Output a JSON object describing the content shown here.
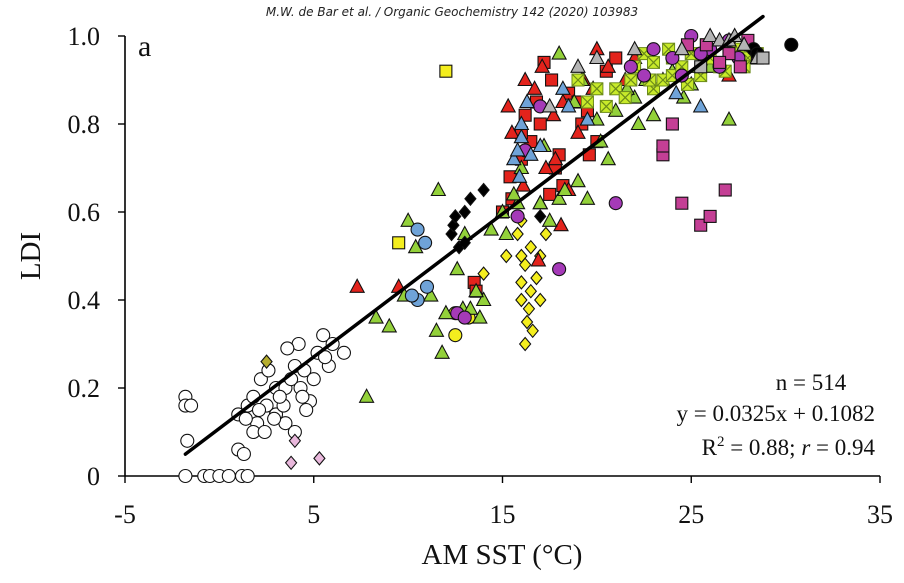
{
  "header": {
    "citation": "M.W. de Bar et al. / Organic Geochemistry 142 (2020) 103983"
  },
  "chart_data": {
    "type": "scatter",
    "panel_label": "a",
    "xlabel": "AM SST (°C)",
    "ylabel": "LDI",
    "xlim": [
      -5,
      35
    ],
    "ylim": [
      0,
      1.0
    ],
    "xticks": [
      "-5",
      "5",
      "15",
      "25",
      "35"
    ],
    "yticks": [
      "0",
      "0.2",
      "0.4",
      "0.6",
      "0.8",
      "1.0"
    ],
    "grid": false,
    "stats": {
      "n": "n = 514",
      "equation": "y = 0.0325x + 0.1082",
      "r2_prefix": "R",
      "r2_sup": "2",
      "r2_mid": " = 0.88; ",
      "r_symbol": "r",
      "r_value": " = 0.94"
    },
    "regression": {
      "slope": 0.0325,
      "intercept": 0.1082,
      "x_range": [
        -1.8,
        28.8
      ]
    },
    "colors": {
      "white": "#ffffff",
      "yellow": "#f4ee1e",
      "red": "#e3231c",
      "green": "#93d13a",
      "lime": "#c8ea2a",
      "purple": "#a53ab8",
      "magenta": "#c43f95",
      "blue": "#6fa3d8",
      "black": "#000000",
      "pink": "#e9b8dc",
      "olive": "#b5ad2e",
      "gray": "#b4b4b4"
    },
    "series": [
      {
        "marker": "circle",
        "color": "white",
        "points": [
          [
            -1.8,
            0.18
          ],
          [
            -1.8,
            0.16
          ],
          [
            -1.7,
            0.08
          ],
          [
            -1.5,
            0.16
          ],
          [
            -1.8,
            0.0
          ],
          [
            -0.8,
            0.0
          ],
          [
            -0.5,
            0.0
          ],
          [
            0.0,
            0.0
          ],
          [
            0.5,
            0.0
          ],
          [
            1.2,
            0.0
          ],
          [
            1.5,
            0.0
          ],
          [
            1.0,
            0.06
          ],
          [
            1.3,
            0.05
          ],
          [
            1.0,
            0.14
          ],
          [
            1.5,
            0.16
          ],
          [
            1.8,
            0.18
          ],
          [
            2.0,
            0.12
          ],
          [
            2.5,
            0.16
          ],
          [
            3.0,
            0.14
          ],
          [
            3.5,
            0.12
          ],
          [
            4.0,
            0.1
          ],
          [
            3.0,
            0.2
          ],
          [
            3.5,
            0.2
          ],
          [
            4.0,
            0.25
          ],
          [
            4.5,
            0.24
          ],
          [
            5.0,
            0.22
          ],
          [
            5.2,
            0.28
          ],
          [
            5.5,
            0.32
          ],
          [
            6.0,
            0.3
          ],
          [
            4.2,
            0.3
          ],
          [
            3.6,
            0.29
          ],
          [
            2.2,
            0.22
          ],
          [
            2.6,
            0.24
          ],
          [
            1.8,
            0.1
          ],
          [
            2.4,
            0.1
          ],
          [
            4.8,
            0.17
          ],
          [
            4.6,
            0.15
          ],
          [
            5.8,
            0.25
          ],
          [
            3.8,
            0.22
          ],
          [
            3.4,
            0.16
          ],
          [
            2.9,
            0.13
          ],
          [
            1.4,
            0.13
          ],
          [
            4.3,
            0.2
          ],
          [
            5.6,
            0.27
          ],
          [
            6.6,
            0.28
          ],
          [
            3.2,
            0.18
          ],
          [
            2.1,
            0.15
          ],
          [
            4.4,
            0.18
          ]
        ]
      },
      {
        "marker": "square",
        "color": "yellow",
        "points": [
          [
            9.5,
            0.53
          ],
          [
            12.0,
            0.92
          ]
        ]
      },
      {
        "marker": "circle",
        "color": "yellow",
        "points": [
          [
            12.5,
            0.37
          ],
          [
            12.5,
            0.32
          ],
          [
            13.2,
            0.36
          ]
        ]
      },
      {
        "marker": "diamond",
        "color": "yellow",
        "points": [
          [
            15.8,
            0.55
          ],
          [
            16.0,
            0.5
          ],
          [
            16.0,
            0.44
          ],
          [
            16.2,
            0.48
          ],
          [
            16.0,
            0.4
          ],
          [
            16.4,
            0.38
          ],
          [
            16.3,
            0.35
          ],
          [
            16.5,
            0.42
          ],
          [
            16.8,
            0.45
          ],
          [
            17.0,
            0.4
          ],
          [
            16.5,
            0.52
          ],
          [
            17.3,
            0.55
          ],
          [
            16.2,
            0.3
          ],
          [
            16.6,
            0.33
          ],
          [
            17.0,
            0.5
          ],
          [
            14.0,
            0.46
          ],
          [
            15.2,
            0.5
          ],
          [
            16.0,
            0.58
          ]
        ]
      },
      {
        "marker": "square",
        "color": "red",
        "points": [
          [
            13.5,
            0.44
          ],
          [
            13.6,
            0.42
          ],
          [
            15.0,
            0.6
          ],
          [
            15.5,
            0.63
          ],
          [
            16.0,
            0.72
          ],
          [
            16.5,
            0.76
          ],
          [
            16.8,
            0.85
          ],
          [
            17.0,
            0.8
          ],
          [
            17.2,
            0.94
          ],
          [
            17.5,
            0.64
          ],
          [
            18.0,
            0.73
          ],
          [
            18.5,
            0.87
          ],
          [
            19.0,
            0.85
          ],
          [
            19.5,
            0.83
          ],
          [
            19.6,
            0.73
          ],
          [
            20.0,
            0.76
          ],
          [
            21.0,
            0.95
          ],
          [
            18.2,
            0.66
          ],
          [
            16.2,
            0.82
          ],
          [
            17.6,
            0.9
          ],
          [
            15.4,
            0.68
          ],
          [
            16.0,
            0.78
          ],
          [
            20.5,
            0.92
          ],
          [
            19.2,
            0.8
          ],
          [
            17.8,
            0.7
          ]
        ]
      },
      {
        "marker": "triangle",
        "color": "red",
        "points": [
          [
            7.3,
            0.43
          ],
          [
            9.5,
            0.43
          ],
          [
            15.5,
            0.78
          ],
          [
            16.2,
            0.9
          ],
          [
            16.7,
            0.88
          ],
          [
            17.0,
            0.62
          ],
          [
            17.3,
            0.7
          ],
          [
            17.8,
            0.72
          ],
          [
            18.2,
            0.85
          ],
          [
            18.5,
            0.65
          ],
          [
            19.0,
            0.78
          ],
          [
            19.3,
            0.9
          ],
          [
            18.1,
            0.57
          ],
          [
            20.0,
            0.97
          ],
          [
            21.5,
            0.9
          ],
          [
            22.0,
            0.95
          ],
          [
            27.0,
            0.91
          ],
          [
            16.9,
            0.49
          ],
          [
            17.1,
            0.93
          ],
          [
            19.8,
            0.88
          ],
          [
            15.3,
            0.84
          ],
          [
            16.1,
            0.66
          ],
          [
            17.7,
            0.82
          ],
          [
            20.6,
            0.93
          ]
        ]
      },
      {
        "marker": "triangle",
        "color": "green",
        "points": [
          [
            7.8,
            0.18
          ],
          [
            8.3,
            0.36
          ],
          [
            9.0,
            0.34
          ],
          [
            9.8,
            0.41
          ],
          [
            10.0,
            0.58
          ],
          [
            10.4,
            0.52
          ],
          [
            11.2,
            0.41
          ],
          [
            11.5,
            0.33
          ],
          [
            11.8,
            0.28
          ],
          [
            12.0,
            0.37
          ],
          [
            12.6,
            0.47
          ],
          [
            12.9,
            0.38
          ],
          [
            13.3,
            0.38
          ],
          [
            13.8,
            0.36
          ],
          [
            13.0,
            0.55
          ],
          [
            11.6,
            0.65
          ],
          [
            14.0,
            0.4
          ],
          [
            15.0,
            0.6
          ],
          [
            15.2,
            0.55
          ],
          [
            15.8,
            0.62
          ],
          [
            16.0,
            0.7
          ],
          [
            17.0,
            0.62
          ],
          [
            17.5,
            0.58
          ],
          [
            18.0,
            0.63
          ],
          [
            18.3,
            0.65
          ],
          [
            19.0,
            0.67
          ],
          [
            19.5,
            0.63
          ],
          [
            20.0,
            0.81
          ],
          [
            21.0,
            0.83
          ],
          [
            22.0,
            0.86
          ],
          [
            23.0,
            0.82
          ],
          [
            23.5,
            0.9
          ],
          [
            24.0,
            0.92
          ],
          [
            25.0,
            0.89
          ],
          [
            26.0,
            0.93
          ],
          [
            27.0,
            0.81
          ],
          [
            18.0,
            0.96
          ],
          [
            19.2,
            0.9
          ],
          [
            20.2,
            0.76
          ],
          [
            21.6,
            0.88
          ],
          [
            22.6,
            0.9
          ],
          [
            24.6,
            0.86
          ],
          [
            25.4,
            0.93
          ],
          [
            17.2,
            0.75
          ],
          [
            18.8,
            0.85
          ],
          [
            13.6,
            0.42
          ],
          [
            14.4,
            0.56
          ],
          [
            15.6,
            0.64
          ],
          [
            20.6,
            0.72
          ],
          [
            22.2,
            0.8
          ]
        ]
      },
      {
        "marker": "x-square",
        "color": "lime",
        "points": [
          [
            19.0,
            0.9
          ],
          [
            19.5,
            0.85
          ],
          [
            20.0,
            0.88
          ],
          [
            20.5,
            0.84
          ],
          [
            21.0,
            0.88
          ],
          [
            21.5,
            0.86
          ],
          [
            22.0,
            0.93
          ],
          [
            22.5,
            0.96
          ],
          [
            23.0,
            0.88
          ],
          [
            23.0,
            0.94
          ],
          [
            23.5,
            0.9
          ],
          [
            24.0,
            0.95
          ],
          [
            24.0,
            0.91
          ],
          [
            24.5,
            0.93
          ],
          [
            25.0,
            0.96
          ],
          [
            25.5,
            0.91
          ],
          [
            26.0,
            0.95
          ],
          [
            26.5,
            0.93
          ],
          [
            27.0,
            0.96
          ],
          [
            27.5,
            0.97
          ],
          [
            28.0,
            0.95
          ],
          [
            28.5,
            0.96
          ],
          [
            22.8,
            0.9
          ],
          [
            24.8,
            0.89
          ],
          [
            26.8,
            0.92
          ],
          [
            21.8,
            0.9
          ],
          [
            23.8,
            0.97
          ],
          [
            25.8,
            0.98
          ],
          [
            27.8,
            0.93
          ]
        ]
      },
      {
        "marker": "circle",
        "color": "purple",
        "points": [
          [
            12.6,
            0.37
          ],
          [
            13.0,
            0.36
          ],
          [
            15.8,
            0.59
          ],
          [
            16.2,
            0.74
          ],
          [
            17.0,
            0.84
          ],
          [
            18.0,
            0.47
          ],
          [
            21.0,
            0.62
          ],
          [
            21.8,
            0.93
          ],
          [
            22.5,
            0.91
          ],
          [
            23.0,
            0.97
          ],
          [
            24.0,
            0.95
          ],
          [
            25.0,
            1.0
          ],
          [
            26.0,
            0.97
          ],
          [
            27.0,
            0.99
          ],
          [
            27.5,
            0.95
          ],
          [
            28.0,
            0.98
          ],
          [
            28.5,
            0.96
          ],
          [
            24.5,
            0.91
          ],
          [
            26.5,
            0.93
          ],
          [
            25.5,
            0.96
          ]
        ]
      },
      {
        "marker": "square",
        "color": "magenta",
        "points": [
          [
            23.5,
            0.73
          ],
          [
            23.5,
            0.75
          ],
          [
            24.0,
            0.8
          ],
          [
            24.5,
            0.62
          ],
          [
            25.5,
            0.57
          ],
          [
            26.0,
            0.59
          ],
          [
            26.8,
            0.65
          ],
          [
            25.8,
            0.98
          ],
          [
            27.0,
            0.96
          ],
          [
            28.0,
            0.99
          ],
          [
            26.5,
            0.94
          ],
          [
            28.5,
            0.95
          ],
          [
            24.8,
            0.98
          ],
          [
            27.6,
            0.93
          ]
        ]
      },
      {
        "marker": "circle",
        "color": "blue",
        "points": [
          [
            10.5,
            0.56
          ],
          [
            10.9,
            0.53
          ],
          [
            10.5,
            0.4
          ],
          [
            10.2,
            0.41
          ],
          [
            11.0,
            0.43
          ]
        ]
      },
      {
        "marker": "triangle",
        "color": "blue",
        "points": [
          [
            15.6,
            0.72
          ],
          [
            15.8,
            0.74
          ],
          [
            16.0,
            0.77
          ],
          [
            16.0,
            0.8
          ],
          [
            16.5,
            0.73
          ],
          [
            17.0,
            0.75
          ],
          [
            18.5,
            0.84
          ],
          [
            19.5,
            0.81
          ],
          [
            25.5,
            0.84
          ],
          [
            15.9,
            0.68
          ],
          [
            16.3,
            0.85
          ],
          [
            18.2,
            0.88
          ],
          [
            24.2,
            0.87
          ]
        ]
      },
      {
        "marker": "diamond",
        "color": "black",
        "points": [
          [
            12.3,
            0.55
          ],
          [
            12.4,
            0.57
          ],
          [
            12.7,
            0.52
          ],
          [
            12.5,
            0.59
          ],
          [
            13.0,
            0.6
          ],
          [
            13.3,
            0.63
          ],
          [
            14.0,
            0.65
          ],
          [
            13.0,
            0.53
          ],
          [
            17.0,
            0.59
          ]
        ]
      },
      {
        "marker": "circle",
        "color": "black",
        "points": [
          [
            28.3,
            0.97
          ],
          [
            28.5,
            0.96
          ],
          [
            30.3,
            0.98
          ]
        ]
      },
      {
        "marker": "diamond",
        "color": "pink",
        "points": [
          [
            4.0,
            0.08
          ],
          [
            3.8,
            0.03
          ],
          [
            5.3,
            0.04
          ]
        ]
      },
      {
        "marker": "diamond",
        "color": "olive",
        "points": [
          [
            2.5,
            0.26
          ]
        ]
      },
      {
        "marker": "triangle",
        "color": "gray",
        "points": [
          [
            17.5,
            0.84
          ],
          [
            20.0,
            0.95
          ],
          [
            22.0,
            0.97
          ],
          [
            26.0,
            1.0
          ],
          [
            26.5,
            0.99
          ],
          [
            27.0,
            0.99
          ],
          [
            27.8,
            0.98
          ],
          [
            28.5,
            0.95
          ],
          [
            19.0,
            0.93
          ],
          [
            24.5,
            0.97
          ],
          [
            27.3,
            1.0
          ]
        ]
      },
      {
        "marker": "square",
        "color": "gray",
        "points": [
          [
            25.5,
            0.93
          ],
          [
            28.8,
            0.95
          ]
        ]
      }
    ]
  }
}
